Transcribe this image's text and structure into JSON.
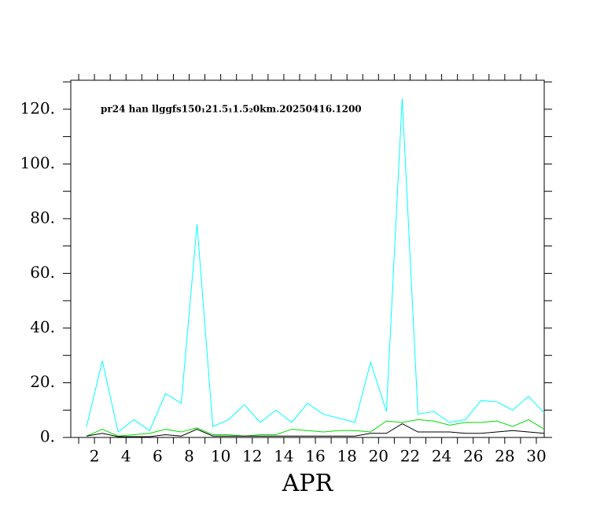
{
  "chart_data": {
    "type": "line",
    "annotation": "pr24 han llggfs150₁21.5₁1.5₂0km.20250416.1200",
    "x_label": "APR",
    "x": [
      1.5,
      2.5,
      3.5,
      4.5,
      5.5,
      6.5,
      7.5,
      8.5,
      9.5,
      10.5,
      11.5,
      12.5,
      13.5,
      14.5,
      15.5,
      16.5,
      17.5,
      18.5,
      19.5,
      20.5,
      21.5,
      22.5,
      23.5,
      24.5,
      25.5,
      26.5,
      27.5,
      28.5,
      29.5,
      30.5
    ],
    "series": [
      {
        "color": "#00ffff",
        "values": [
          4,
          28,
          2,
          6.5,
          2.5,
          16,
          12.5,
          78,
          4,
          6.5,
          12,
          5.5,
          10,
          5.5,
          12.5,
          8.5,
          7,
          5.5,
          27.5,
          9.5,
          124,
          8.5,
          9.5,
          5.5,
          6.5,
          13.5,
          13,
          10,
          15,
          9
        ]
      },
      {
        "color": "#00dd00",
        "values": [
          0.5,
          3,
          0.5,
          1,
          1.5,
          3,
          2,
          3.5,
          1,
          1,
          0.5,
          1,
          1,
          3,
          2.5,
          2,
          2.5,
          2.5,
          2,
          6,
          5.5,
          6.5,
          6,
          4.5,
          5.5,
          5.5,
          6,
          4,
          6.5,
          3
        ]
      },
      {
        "color": "#000000",
        "values": [
          0.5,
          1.5,
          0.3,
          0.3,
          0.3,
          1,
          0.5,
          3,
          0.5,
          0.5,
          0.5,
          0.5,
          0.5,
          0.5,
          0.5,
          0.5,
          0.5,
          0.5,
          1.5,
          1.5,
          5,
          2,
          2,
          2,
          1.5,
          1.5,
          2,
          2.5,
          2,
          1.5
        ]
      }
    ],
    "xlim": [
      0.5,
      30.5
    ],
    "xticks": [
      2,
      4,
      6,
      8,
      10,
      12,
      14,
      16,
      18,
      20,
      22,
      24,
      26,
      28,
      30
    ],
    "xminor": [
      1,
      3,
      5,
      7,
      9,
      11,
      13,
      15,
      17,
      19,
      21,
      23,
      25,
      27,
      29
    ],
    "ylim": [
      0,
      130.6
    ],
    "yticks": [
      {
        "value": 0,
        "label": "0."
      },
      {
        "value": 20,
        "label": "20."
      },
      {
        "value": 40,
        "label": "40."
      },
      {
        "value": 60,
        "label": "60."
      },
      {
        "value": 80,
        "label": "80."
      },
      {
        "value": 100,
        "label": "100."
      },
      {
        "value": 120,
        "label": "120."
      }
    ],
    "yminor": [
      10,
      30,
      50,
      70,
      90,
      110,
      130
    ]
  }
}
